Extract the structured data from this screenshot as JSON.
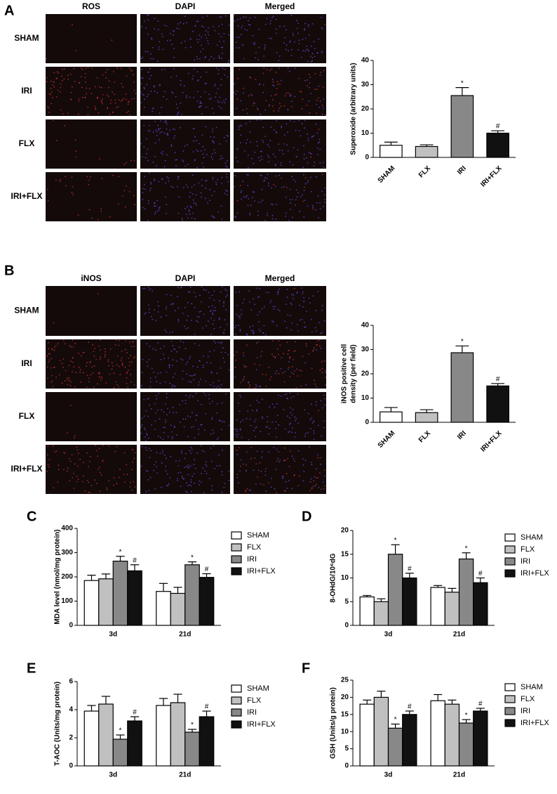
{
  "panel_labels": [
    "A",
    "B",
    "C",
    "D",
    "E",
    "F"
  ],
  "panels": [
    {
      "columns": [
        "ROS",
        "DAPI",
        "Merged"
      ],
      "rows": [
        "SHAM",
        "IRI",
        "FLX",
        "IRI+FLX"
      ]
    },
    {
      "columns": [
        "iNOS",
        "DAPI",
        "Merged"
      ],
      "rows": [
        "SHAM",
        "IRI",
        "FLX",
        "IRI+FLX"
      ]
    }
  ],
  "chart_data": [
    {
      "type": "bar",
      "ylabel": [
        "Superoxide (arbitrary units)"
      ],
      "categories": [
        "SHAM",
        "FLX",
        "IRI",
        "IRI+FLX"
      ],
      "values": [
        5,
        4.5,
        25.5,
        10
      ],
      "errors": [
        1.3,
        0.7,
        3.3,
        1
      ],
      "colors": [
        "#ffffff",
        "#c0c0c0",
        "#888888",
        "#111111"
      ],
      "markers": [
        null,
        null,
        "*",
        "#"
      ],
      "ylim": [
        0,
        40
      ],
      "yticks": [
        0,
        10,
        20,
        30,
        40
      ]
    },
    {
      "type": "bar",
      "ylabel": [
        "iNOS positive cell",
        "density (per field)"
      ],
      "categories": [
        "SHAM",
        "FLX",
        "IRI",
        "IRI+FLX"
      ],
      "values": [
        4.3,
        4,
        28.7,
        15
      ],
      "errors": [
        1.8,
        1.2,
        2.8,
        1
      ],
      "colors": [
        "#ffffff",
        "#c0c0c0",
        "#888888",
        "#111111"
      ],
      "markers": [
        null,
        null,
        "*",
        "#"
      ],
      "ylim": [
        0,
        40
      ],
      "yticks": [
        0,
        10,
        20,
        30,
        40
      ]
    },
    {
      "type": "grouped",
      "ylabel": [
        "MDA level (nmol/mg protein)"
      ],
      "categories": [
        "3d",
        "21d"
      ],
      "series": [
        {
          "name": "SHAM",
          "color": "#ffffff",
          "values": [
            185,
            140
          ],
          "errors": [
            22,
            33
          ],
          "markers": [
            null,
            null
          ]
        },
        {
          "name": "FLX",
          "color": "#c0c0c0",
          "values": [
            192,
            132
          ],
          "errors": [
            20,
            25
          ],
          "markers": [
            null,
            null
          ]
        },
        {
          "name": "IRI",
          "color": "#888888",
          "values": [
            265,
            250
          ],
          "errors": [
            20,
            12
          ],
          "markers": [
            "*",
            "*"
          ]
        },
        {
          "name": "IRI+FLX",
          "color": "#111111",
          "values": [
            225,
            198
          ],
          "errors": [
            25,
            15
          ],
          "markers": [
            "#",
            "#"
          ]
        }
      ],
      "ylim": [
        0,
        400
      ],
      "yticks": [
        0,
        100,
        200,
        300,
        400
      ]
    },
    {
      "type": "grouped",
      "ylabel": [
        "8-OHdG/10⁶dG"
      ],
      "categories": [
        "3d",
        "21d"
      ],
      "series": [
        {
          "name": "SHAM",
          "color": "#ffffff",
          "values": [
            6,
            8
          ],
          "errors": [
            0.3,
            0.4
          ],
          "markers": [
            null,
            null
          ]
        },
        {
          "name": "FLX",
          "color": "#c0c0c0",
          "values": [
            5,
            7
          ],
          "errors": [
            0.6,
            0.8
          ],
          "markers": [
            null,
            null
          ]
        },
        {
          "name": "IRI",
          "color": "#888888",
          "values": [
            15,
            14
          ],
          "errors": [
            2,
            1.3
          ],
          "markers": [
            "*",
            "*"
          ]
        },
        {
          "name": "IRI+FLX",
          "color": "#111111",
          "values": [
            10,
            9
          ],
          "errors": [
            1,
            1
          ],
          "markers": [
            "#",
            "#"
          ]
        }
      ],
      "ylim": [
        0,
        20
      ],
      "yticks": [
        0,
        5,
        10,
        15,
        20
      ]
    },
    {
      "type": "grouped",
      "ylabel": [
        "T-AOC (Units/mg protein)"
      ],
      "categories": [
        "3d",
        "21d"
      ],
      "series": [
        {
          "name": "SHAM",
          "color": "#ffffff",
          "values": [
            3.9,
            4.3
          ],
          "errors": [
            0.4,
            0.5
          ],
          "markers": [
            null,
            null
          ]
        },
        {
          "name": "FLX",
          "color": "#c0c0c0",
          "values": [
            4.4,
            4.5
          ],
          "errors": [
            0.55,
            0.6
          ],
          "markers": [
            null,
            null
          ]
        },
        {
          "name": "IRI",
          "color": "#888888",
          "values": [
            1.9,
            2.4
          ],
          "errors": [
            0.3,
            0.2
          ],
          "markers": [
            "*",
            "*"
          ]
        },
        {
          "name": "IRI+FLX",
          "color": "#111111",
          "values": [
            3.2,
            3.5
          ],
          "errors": [
            0.3,
            0.4
          ],
          "markers": [
            "#",
            "#"
          ]
        }
      ],
      "ylim": [
        0,
        6
      ],
      "yticks": [
        0,
        2,
        4,
        6
      ]
    },
    {
      "type": "grouped",
      "ylabel": [
        "GSH (Units/g protein)"
      ],
      "categories": [
        "3d",
        "21d"
      ],
      "series": [
        {
          "name": "SHAM",
          "color": "#ffffff",
          "values": [
            18,
            19
          ],
          "errors": [
            1.2,
            1.8
          ],
          "markers": [
            null,
            null
          ]
        },
        {
          "name": "FLX",
          "color": "#c0c0c0",
          "values": [
            20,
            18
          ],
          "errors": [
            1.8,
            1.2
          ],
          "markers": [
            null,
            null
          ]
        },
        {
          "name": "IRI",
          "color": "#888888",
          "values": [
            11,
            12.5
          ],
          "errors": [
            1.2,
            1
          ],
          "markers": [
            "*",
            "*"
          ]
        },
        {
          "name": "IRI+FLX",
          "color": "#111111",
          "values": [
            15,
            16
          ],
          "errors": [
            1,
            0.8
          ],
          "markers": [
            "#",
            "#"
          ]
        }
      ],
      "ylim": [
        0,
        25
      ],
      "yticks": [
        0,
        5,
        10,
        15,
        20,
        25
      ]
    }
  ]
}
